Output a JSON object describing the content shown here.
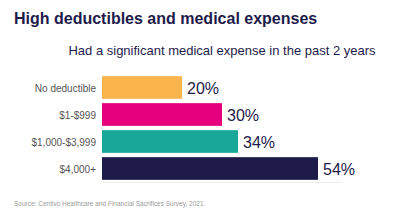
{
  "chart_data": {
    "type": "bar",
    "orientation": "horizontal",
    "title": "High deductibles and medical expenses",
    "subtitle": "Had a significant medical expense in the past 2 years",
    "source": "Source: Centivo Healthcare and Financial Sacrifices Survey, 2021.",
    "categories": [
      "No deductible",
      "$1-$999",
      "$1,000-$3,999",
      "$4,000+"
    ],
    "values": [
      20,
      30,
      34,
      54
    ],
    "value_labels": [
      "20%",
      "30%",
      "34%",
      "54%"
    ],
    "colors": [
      "#f9b54c",
      "#e6007e",
      "#17a89a",
      "#1e1b4b"
    ],
    "xlim": [
      0,
      60
    ],
    "xticks": [],
    "data_labels": true,
    "tick_labels": "y",
    "grid": false
  }
}
